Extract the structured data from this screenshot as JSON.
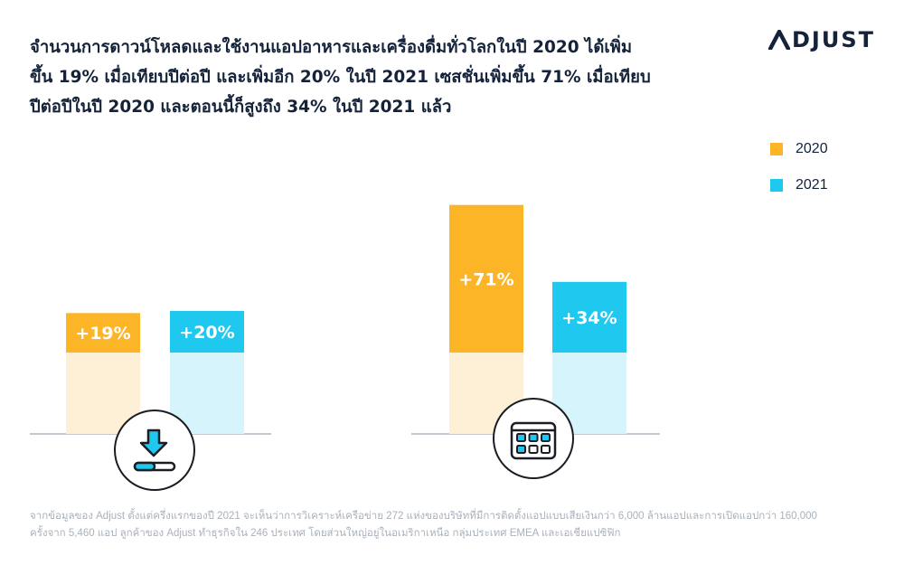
{
  "title_lines": [
    "จำนวนการดาวน์โหลดและใช้งานแอปอาหารและเครื่องดื่มทั่วโลกในปี 2020 ได้เพิ่ม",
    "ขึ้น 19% เมื่อเทียบปีต่อปี และเพิ่มอีก 20% ในปี 2021 เซสชั่นเพิ่มขึ้น 71% เมื่อเทียบ",
    "ปีต่อปีในปี 2020 และตอนนี้ก็สูงถึง 34% ในปี 2021 แล้ว"
  ],
  "logo_text": "DJUST",
  "legend": [
    {
      "label": "2020",
      "color": "#fcb526"
    },
    {
      "label": "2021",
      "color": "#1ec8ef"
    }
  ],
  "colors": {
    "y2020": "#fcb526",
    "y2020_light": "#fdf0d6",
    "y2021": "#1ec8ef",
    "y2021_light": "#d6f4fc",
    "baseline": "#b0b6bd"
  },
  "chart_data": {
    "type": "bar",
    "groups": [
      {
        "icon": "download-icon",
        "bars": [
          {
            "series": "2020",
            "label": "+19%",
            "value": 19
          },
          {
            "series": "2021",
            "label": "+20%",
            "value": 20
          }
        ]
      },
      {
        "icon": "calendar-icon",
        "bars": [
          {
            "series": "2020",
            "label": "+71%",
            "value": 71
          },
          {
            "series": "2021",
            "label": "+34%",
            "value": 34
          }
        ]
      }
    ]
  },
  "footnote_lines": [
    "จากข้อมูลของ Adjust ตั้งแต่ครึ่งแรกของปี 2021 จะเห็นว่าการวิเคราะห์เครือข่าย 272 แห่งของบริษัทที่มีการติดตั้งแอปแบบเสียเงินกว่า 6,000 ล้านแอปและการเปิดแอปกว่า 160,000",
    "ครั้งจาก 5,460 แอป ลูกค้าของ Adjust ทำธุรกิจใน 246 ประเทศ โดยส่วนใหญ่อยู่ในอเมริกาเหนือ กลุ่มประเทศ EMEA และเอเชียแปซิฟิก"
  ]
}
